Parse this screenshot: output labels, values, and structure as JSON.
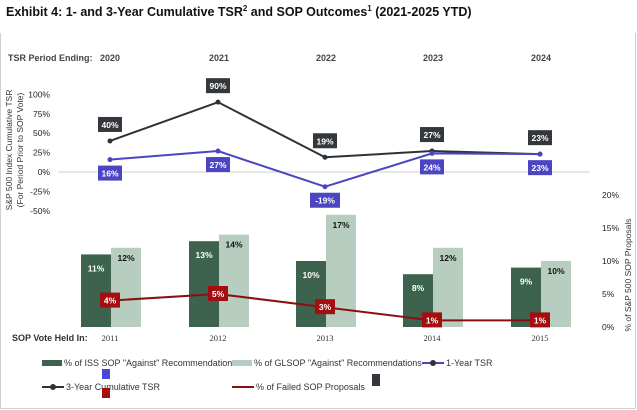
{
  "title": {
    "prefix": "Exhibit 4: 1- and 3-Year Cumulative TSR",
    "sup1": "2",
    "middle": " and SOP Outcomes",
    "sup2": "1",
    "suffix": " (2021-2025 YTD)"
  },
  "chart_data": [
    {
      "type": "line",
      "title": "S&P 500 Index Cumulative TSR",
      "top_axis_label": "TSR Period Ending:",
      "categories": [
        "2020",
        "2021",
        "2022",
        "2023",
        "2024"
      ],
      "ylabel_line1": "S&P 500 Index Cumulative  TSR",
      "ylabel_line2": "(For Period Prior to SOP Vote)",
      "ylim": [
        -50,
        100
      ],
      "yticks": [
        100,
        75,
        50,
        25,
        0,
        -25,
        -50
      ],
      "ytick_labels": [
        "100%",
        "75%",
        "50%",
        "25%",
        "0%",
        "-25%",
        "-50%"
      ],
      "series": [
        {
          "name": "3-Year Cumulative TSR",
          "color": "#2f3235",
          "values": [
            40,
            90,
            19,
            27,
            23
          ],
          "labels": [
            "40%",
            "90%",
            "19%",
            "27%",
            "23%"
          ]
        },
        {
          "name": "1-Year TSR",
          "color": "#4a45c2",
          "values": [
            16,
            27,
            -19,
            24,
            23
          ],
          "labels": [
            "16%",
            "27%",
            "-19%",
            "24%",
            "23%"
          ]
        }
      ]
    },
    {
      "type": "bar",
      "bottom_axis_label": "SOP Vote Held In:",
      "categories": [
        "2011",
        "2012",
        "2013",
        "2014",
        "2015"
      ],
      "ylabel": "% of  S&P 500 SOP Proposals",
      "ylim": [
        0,
        20
      ],
      "yticks": [
        20,
        15,
        10,
        5,
        0
      ],
      "ytick_labels": [
        "20%",
        "15%",
        "10%",
        "5%",
        "0%"
      ],
      "series": [
        {
          "name": "% of ISS SOP \"Against\" Recommendations",
          "color": "#3d634f",
          "values": [
            11,
            13,
            10,
            8,
            9
          ],
          "labels": [
            "11%",
            "13%",
            "10%",
            "8%",
            "9%"
          ]
        },
        {
          "name": "% of GL SOP \"Against\" Recommendations",
          "color": "#b7cdbf",
          "values": [
            12,
            14,
            17,
            12,
            10
          ],
          "labels": [
            "12%",
            "14%",
            "17%",
            "12%",
            "10%"
          ]
        },
        {
          "name": "% of Failed SOP Proposals",
          "type": "line",
          "color": "#8b0f10",
          "values": [
            4,
            5,
            3,
            1,
            1
          ],
          "labels": [
            "4%",
            "5%",
            "3%",
            "1%",
            "1%"
          ]
        }
      ]
    }
  ],
  "legend": {
    "iss": "% of ISS SOP \"Against\" Recommendations",
    "gl": "% of GLSOP \"Against\" Recommendations",
    "one_year": "1-Year TSR",
    "three_year": "3-Year Cumulative TSR",
    "failed": "% of Failed SOP Proposals"
  },
  "colors": {
    "iss": "#3d634f",
    "gl": "#b7cdbf",
    "one_year": "#4a45c2",
    "three_year": "#2f3235",
    "failed": "#8b0f10",
    "label_blue": "#4b45c4",
    "label_red": "#a30e10",
    "label_dark": "#34383c"
  }
}
